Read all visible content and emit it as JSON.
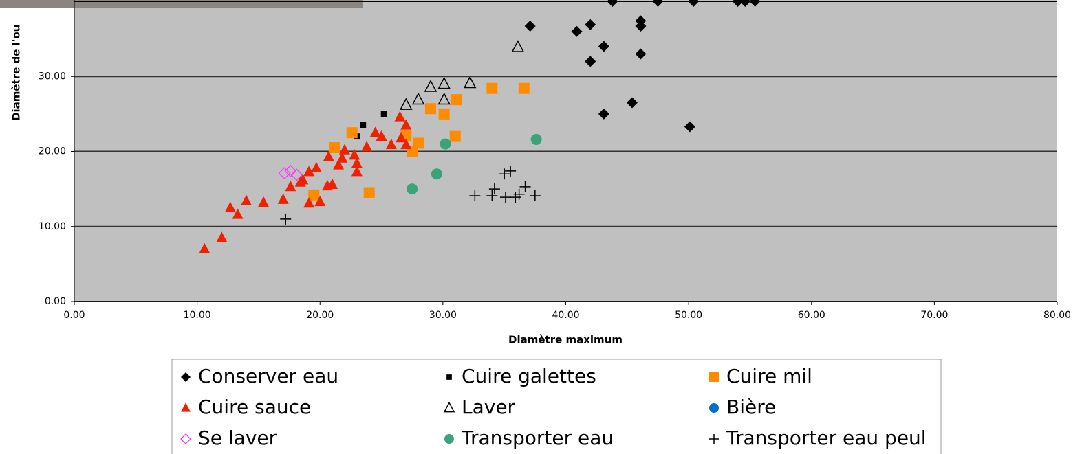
{
  "chart_data": {
    "type": "scatter",
    "x_label": "Diamètre maximum",
    "y_label": "Diamètre de l'ou",
    "xlim": [
      0,
      80
    ],
    "ylim": [
      0,
      40
    ],
    "xticks": [
      {
        "value": 0,
        "label": "0.00"
      },
      {
        "value": 10,
        "label": "10.00"
      },
      {
        "value": 20,
        "label": "20.00"
      },
      {
        "value": 30,
        "label": "30.00"
      },
      {
        "value": 40,
        "label": "40.00"
      },
      {
        "value": 50,
        "label": "50.00"
      },
      {
        "value": 60,
        "label": "60.00"
      },
      {
        "value": 70,
        "label": "70.00"
      },
      {
        "value": 80,
        "label": "80.00"
      }
    ],
    "yticks": [
      {
        "value": 0,
        "label": "0.00"
      },
      {
        "value": 10,
        "label": "10.00"
      },
      {
        "value": 20,
        "label": "20.00"
      },
      {
        "value": 30,
        "label": "30.00"
      }
    ],
    "grid": true,
    "legend": "bottom",
    "series": [
      {
        "name": "Conserver eau",
        "color": "#000000",
        "marker": "diamond",
        "x": [
          43.8,
          47.5,
          50.4,
          54.0,
          54.6,
          55.4,
          37.1,
          40.9,
          42.0,
          46.1,
          46.1,
          43.1,
          42.0,
          46.1,
          43.1,
          45.4,
          50.1
        ],
        "values": [
          40,
          40,
          40,
          40,
          40,
          40,
          36.7,
          36.0,
          36.9,
          37.4,
          36.7,
          34.0,
          32.0,
          33.0,
          25.0,
          26.5,
          23.3
        ]
      },
      {
        "name": "Cuire galettes",
        "color": "#000000",
        "marker": "small-square",
        "x": [
          23.5,
          25.2,
          23.0
        ],
        "values": [
          23.5,
          25.0,
          22.0
        ]
      },
      {
        "name": "Cuire mil",
        "color": "#ff8c00",
        "marker": "square",
        "x": [
          34.0,
          36.6,
          29.0,
          30.1,
          31.1,
          22.6,
          21.2,
          28.0,
          27.5,
          31.0,
          24.0,
          19.5,
          27.0
        ],
        "values": [
          28.4,
          28.4,
          25.7,
          25.0,
          26.9,
          22.5,
          20.5,
          21.1,
          20.0,
          22.0,
          14.5,
          14.2,
          22.1
        ]
      },
      {
        "name": "Cuire sauce",
        "color": "#ee2200",
        "marker": "triangle",
        "x": [
          10.6,
          12.0,
          12.7,
          13.3,
          14.0,
          15.4,
          17.0,
          17.6,
          18.4,
          19.1,
          19.7,
          19.1,
          20.0,
          20.6,
          21.0,
          20.7,
          21.5,
          21.8,
          22.0,
          22.8,
          23.0,
          23.0,
          23.8,
          24.5,
          25.0,
          25.8,
          26.5,
          27.0,
          26.6,
          27.0,
          18.6
        ],
        "values": [
          7.0,
          8.5,
          12.5,
          11.6,
          13.4,
          13.2,
          13.6,
          15.3,
          15.9,
          17.3,
          17.8,
          13.1,
          13.3,
          15.4,
          15.6,
          19.3,
          18.2,
          19.1,
          20.2,
          19.5,
          17.3,
          18.4,
          20.6,
          22.5,
          22.0,
          20.9,
          24.6,
          23.5,
          21.8,
          20.9,
          16.2
        ]
      },
      {
        "name": "Laver",
        "color": "#000000",
        "marker": "open-triangle",
        "x": [
          36.1,
          32.2,
          30.1,
          29.0,
          28.0,
          27.0,
          30.1
        ],
        "values": [
          33.9,
          29.1,
          29.0,
          28.6,
          26.9,
          26.2,
          26.9
        ]
      },
      {
        "name": "Bière",
        "color": "#0070d0",
        "marker": "circle",
        "x": [],
        "values": []
      },
      {
        "name": "Se laver",
        "color": "#ff33ff",
        "marker": "open-diamond",
        "x": [
          17.1,
          17.6,
          18.1
        ],
        "values": [
          17.1,
          17.4,
          16.9
        ]
      },
      {
        "name": "Transporter eau",
        "color": "#3aa37a",
        "marker": "circle",
        "x": [
          30.2,
          37.6,
          29.5,
          27.5
        ],
        "values": [
          21.0,
          21.6,
          17.0,
          15.0
        ]
      },
      {
        "name": "Transporter eau peul",
        "color": "#000000",
        "marker": "plus",
        "x": [
          17.2,
          32.6,
          34.0,
          34.2,
          35.0,
          35.5,
          35.1,
          35.9,
          36.2,
          36.7,
          37.5
        ],
        "values": [
          11.0,
          14.1,
          14.1,
          15.0,
          17.0,
          17.4,
          13.9,
          13.9,
          14.3,
          15.3,
          14.1
        ]
      }
    ]
  }
}
